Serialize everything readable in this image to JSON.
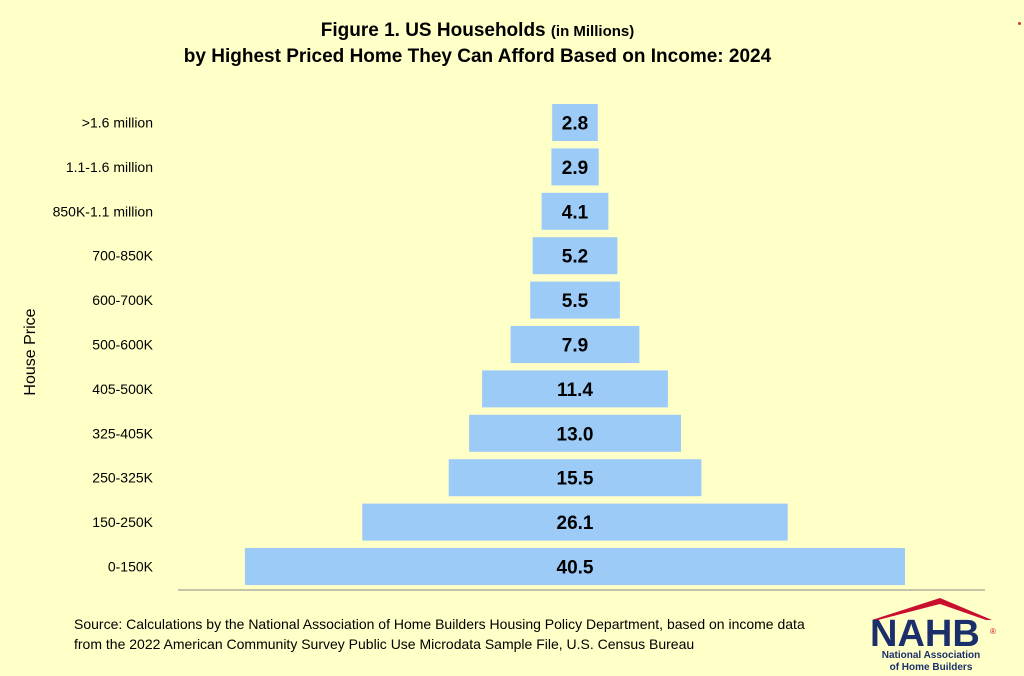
{
  "title": {
    "main": "Figure 1. US Households",
    "unit": "(in Millions)",
    "line2": "by Highest Priced Home They Can Afford Based on Income: 2024"
  },
  "source": "Source: Calculations by the National Association of Home Builders Housing Policy Department, based on income data from the 2022 American Community Survey Public Use Microdata Sample File, U.S. Census Bureau",
  "logo": {
    "text": "NAHB",
    "line1": "National Association",
    "line2": "of Home Builders"
  },
  "colors": {
    "background": "#ffffc8",
    "bar": "#9dcbf8",
    "logo_blue": "#1b2f6b",
    "logo_red": "#c8102e"
  },
  "chart_data": {
    "type": "bar",
    "orientation": "horizontal-centered",
    "ylabel": "House Price",
    "categories": [
      ">1.6 million",
      "1.1-1.6 million",
      "850K-1.1 million",
      "700-850K",
      "600-700K",
      "500-600K",
      "405-500K",
      "325-405K",
      "250-325K",
      "150-250K",
      "0-150K"
    ],
    "values": [
      2.8,
      2.9,
      4.1,
      5.2,
      5.5,
      7.9,
      11.4,
      13.0,
      15.5,
      26.1,
      40.5
    ],
    "labels": [
      "2.8",
      "2.9",
      "4.1",
      "5.2",
      "5.5",
      "7.9",
      "11.4",
      "13.0",
      "15.5",
      "26.1",
      "40.5"
    ]
  }
}
